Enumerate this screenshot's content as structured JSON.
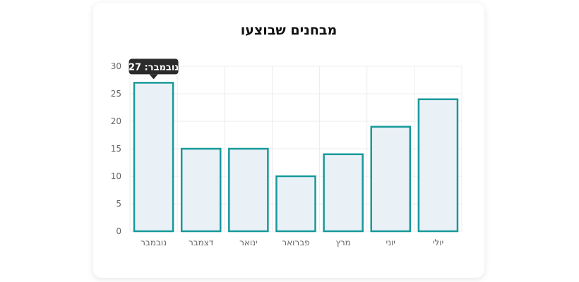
{
  "colors": {
    "bar_fill": "#eaf1f6",
    "bar_stroke": "#17999a",
    "grid": "#ececec",
    "tooltip_bg": "#2b2b2b"
  },
  "chart_data": {
    "type": "bar",
    "title": "מבחנים שבוצעו",
    "categories": [
      "נובמבר",
      "דצמבר",
      "ינואר",
      "פברואר",
      "מרץ",
      "יוני",
      "יולי"
    ],
    "values": [
      27,
      15,
      15,
      10,
      14,
      19,
      24
    ],
    "ylim": [
      0,
      30
    ],
    "yticks": [
      0,
      5,
      10,
      15,
      20,
      25,
      30
    ],
    "grid": true,
    "legend": "none",
    "tooltip": {
      "category_index": 0,
      "text": "נובמבר: 27"
    }
  }
}
